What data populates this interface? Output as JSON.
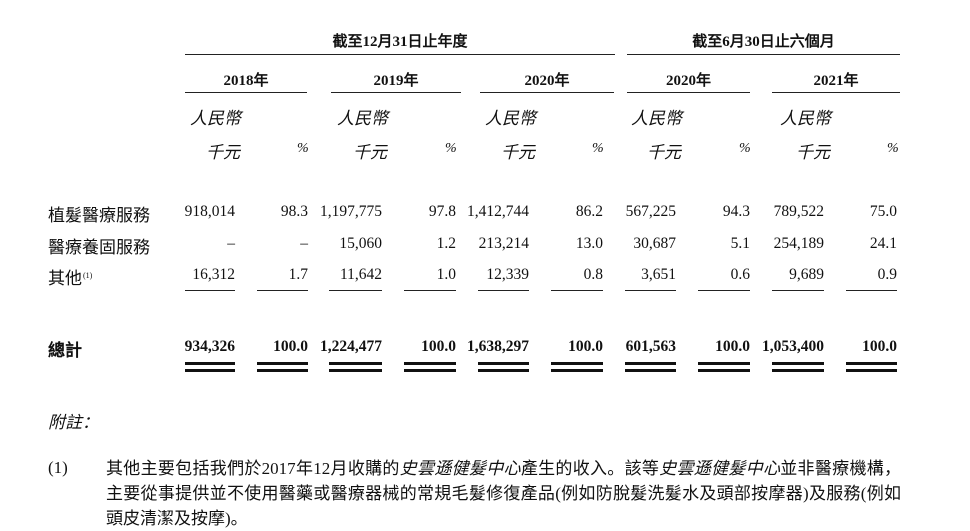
{
  "header": {
    "group1": "截至12月31日止年度",
    "group2": "截至6月30日止六個月",
    "years": [
      "2018年",
      "2019年",
      "2020年",
      "2020年",
      "2021年"
    ],
    "unit_line1": "人民幣",
    "unit_line2": "千元",
    "percent": "%"
  },
  "rows": [
    {
      "label": "植髮醫療服務",
      "values": [
        "918,014",
        "98.3",
        "1,197,775",
        "97.8",
        "1,412,744",
        "86.2",
        "567,225",
        "94.3",
        "789,522",
        "75.0"
      ]
    },
    {
      "label": "醫療養固服務",
      "values": [
        "–",
        "–",
        "15,060",
        "1.2",
        "213,214",
        "13.0",
        "30,687",
        "5.1",
        "254,189",
        "24.1"
      ]
    },
    {
      "label": "其他",
      "footnote": "(1)",
      "values": [
        "16,312",
        "1.7",
        "11,642",
        "1.0",
        "12,339",
        "0.8",
        "3,651",
        "0.6",
        "9,689",
        "0.9"
      ]
    }
  ],
  "total": {
    "label": "總計",
    "values": [
      "934,326",
      "100.0",
      "1,224,477",
      "100.0",
      "1,638,297",
      "100.0",
      "601,563",
      "100.0",
      "1,053,400",
      "100.0"
    ]
  },
  "notes": {
    "title": "附註：",
    "items": [
      {
        "number": "(1)",
        "text_a": "其他主要包括我們於2017年12月收購的",
        "text_italic_1": "史雲遜健髮中心",
        "text_b": "產生的收入。該等",
        "text_italic_2": "史雲遜健髮中心",
        "text_c": "並非醫療機構，主要從事提供並不使用醫藥或醫療器械的常規毛髮修復產品(例如防脫髮洗髮水及頭部按摩器)及服務(例如頭皮清潔及按摩)。"
      }
    ]
  }
}
